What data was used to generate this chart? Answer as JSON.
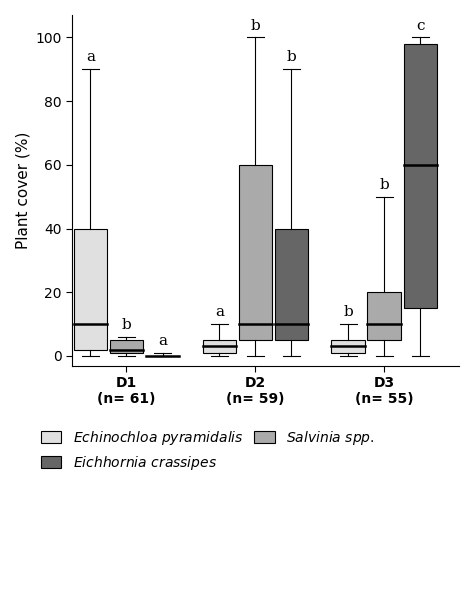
{
  "title": "",
  "ylabel": "Plant cover (%)",
  "ylim": [
    -3,
    107
  ],
  "yticks": [
    0,
    20,
    40,
    60,
    80,
    100
  ],
  "group_keys": [
    "D1",
    "D2",
    "D3"
  ],
  "group_labels": [
    "D1\n(n= 61)",
    "D2\n(n= 59)",
    "D3\n(n= 55)"
  ],
  "species": [
    "Echinochloa pyramidalis",
    "Salvinia spp.",
    "Eichhornia crassipes"
  ],
  "colors": [
    "#e0e0e0",
    "#aaaaaa",
    "#666666"
  ],
  "box_data": {
    "D1": {
      "Echinochloa pyramidalis": {
        "min": 0,
        "q1": 2,
        "median": 10,
        "q3": 40,
        "max": 90
      },
      "Salvinia spp.": {
        "min": 0,
        "q1": 1,
        "median": 2,
        "q3": 5,
        "max": 6
      },
      "Eichhornia crassipes": {
        "min": 0,
        "q1": 0,
        "median": 0,
        "q3": 0,
        "max": 1
      }
    },
    "D2": {
      "Echinochloa pyramidalis": {
        "min": 0,
        "q1": 1,
        "median": 3,
        "q3": 5,
        "max": 10
      },
      "Salvinia spp.": {
        "min": 0,
        "q1": 5,
        "median": 10,
        "q3": 60,
        "max": 100
      },
      "Eichhornia crassipes": {
        "min": 0,
        "q1": 5,
        "median": 10,
        "q3": 40,
        "max": 90
      }
    },
    "D3": {
      "Echinochloa pyramidalis": {
        "min": 0,
        "q1": 1,
        "median": 3,
        "q3": 5,
        "max": 10
      },
      "Salvinia spp.": {
        "min": 0,
        "q1": 5,
        "median": 10,
        "q3": 20,
        "max": 50
      },
      "Eichhornia crassipes": {
        "min": 0,
        "q1": 15,
        "median": 60,
        "q3": 98,
        "max": 100
      }
    }
  },
  "sig_labels": {
    "D1": {
      "Echinochloa pyramidalis": "a",
      "Salvinia spp.": "b",
      "Eichhornia crassipes": "a"
    },
    "D2": {
      "Echinochloa pyramidalis": "a",
      "Salvinia spp.": "b",
      "Eichhornia crassipes": "b"
    },
    "D3": {
      "Echinochloa pyramidalis": "b",
      "Salvinia spp.": "b",
      "Eichhornia crassipes": "c"
    }
  },
  "legend_labels": [
    "Echinochloa pyramidalis",
    "Eichhornia crassipes",
    "Salvinia spp."
  ],
  "legend_colors": [
    "#e0e0e0",
    "#666666",
    "#aaaaaa"
  ],
  "box_width": 0.26,
  "group_positions": [
    1,
    2,
    3
  ],
  "offsets": [
    -0.28,
    0.0,
    0.28
  ],
  "sig_label_fontsize": 11,
  "axis_fontsize": 11,
  "tick_fontsize": 10,
  "legend_fontsize": 10
}
